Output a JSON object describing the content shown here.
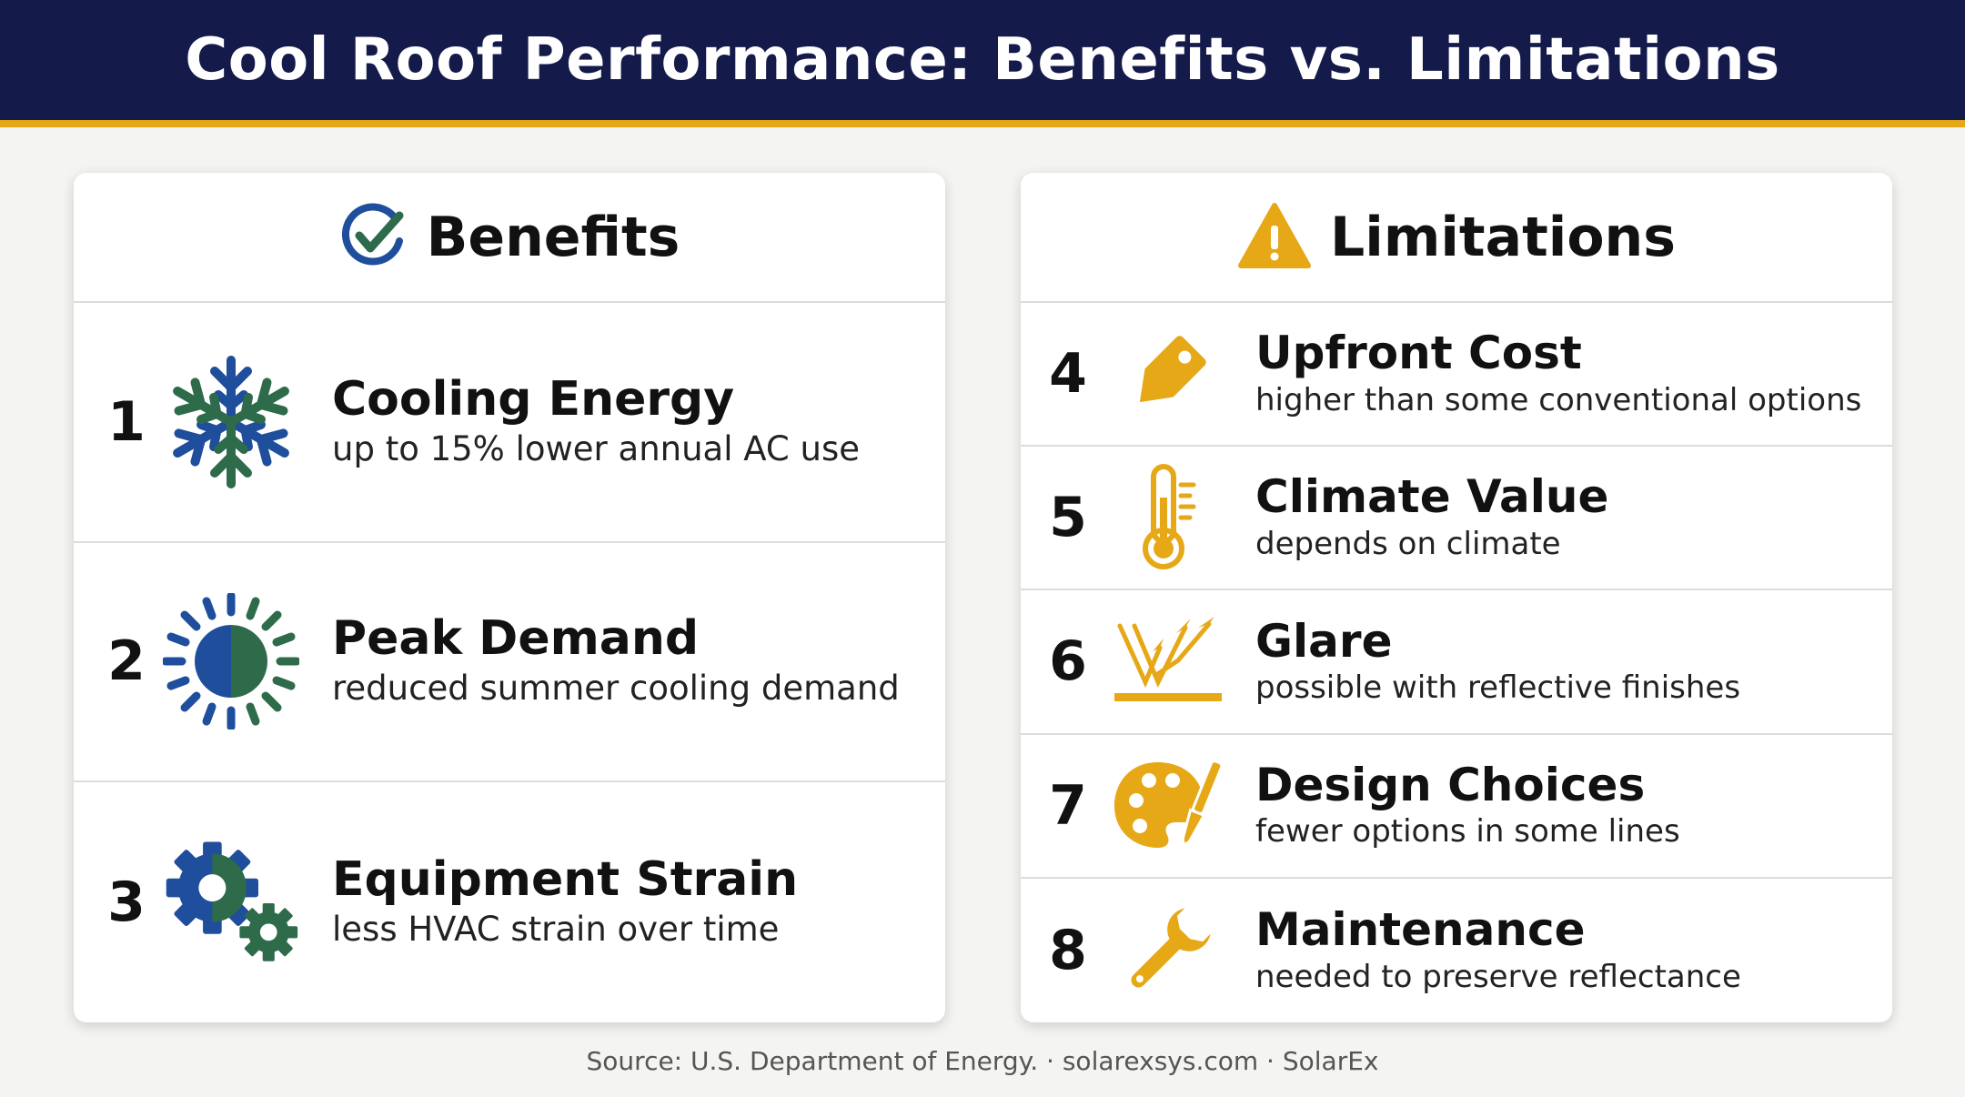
{
  "title": "Cool Roof Performance: Benefits vs. Limitations",
  "benefits": {
    "heading": "Benefits",
    "icon": "check-circle-icon",
    "items": [
      {
        "num": "1",
        "title": "Cooling Energy",
        "desc": "up to 15% lower annual AC use",
        "icon": "snowflake-icon"
      },
      {
        "num": "2",
        "title": "Peak Demand",
        "desc": "reduced summer cooling demand",
        "icon": "sun-icon"
      },
      {
        "num": "3",
        "title": "Equipment Strain",
        "desc": "less HVAC strain over time",
        "icon": "gears-icon"
      }
    ]
  },
  "limitations": {
    "heading": "Limitations",
    "icon": "warning-icon",
    "items": [
      {
        "num": "4",
        "title": "Upfront Cost",
        "desc": "higher than some conventional options",
        "icon": "price-tag-icon"
      },
      {
        "num": "5",
        "title": "Climate Value",
        "desc": "depends on climate",
        "icon": "thermometer-icon"
      },
      {
        "num": "6",
        "title": "Glare",
        "desc": "possible with reflective finishes",
        "icon": "glare-icon"
      },
      {
        "num": "7",
        "title": "Design Choices",
        "desc": "fewer options in some lines",
        "icon": "palette-icon"
      },
      {
        "num": "8",
        "title": "Maintenance",
        "desc": "needed to preserve reflectance",
        "icon": "wrench-icon"
      }
    ]
  },
  "source": "Source: U.S. Department of Energy. · solarexsys.com · SolarEx",
  "colors": {
    "navy": "#141a4a",
    "gold": "#e6a817",
    "blue": "#1f4e9c",
    "green": "#2e6b4a"
  }
}
